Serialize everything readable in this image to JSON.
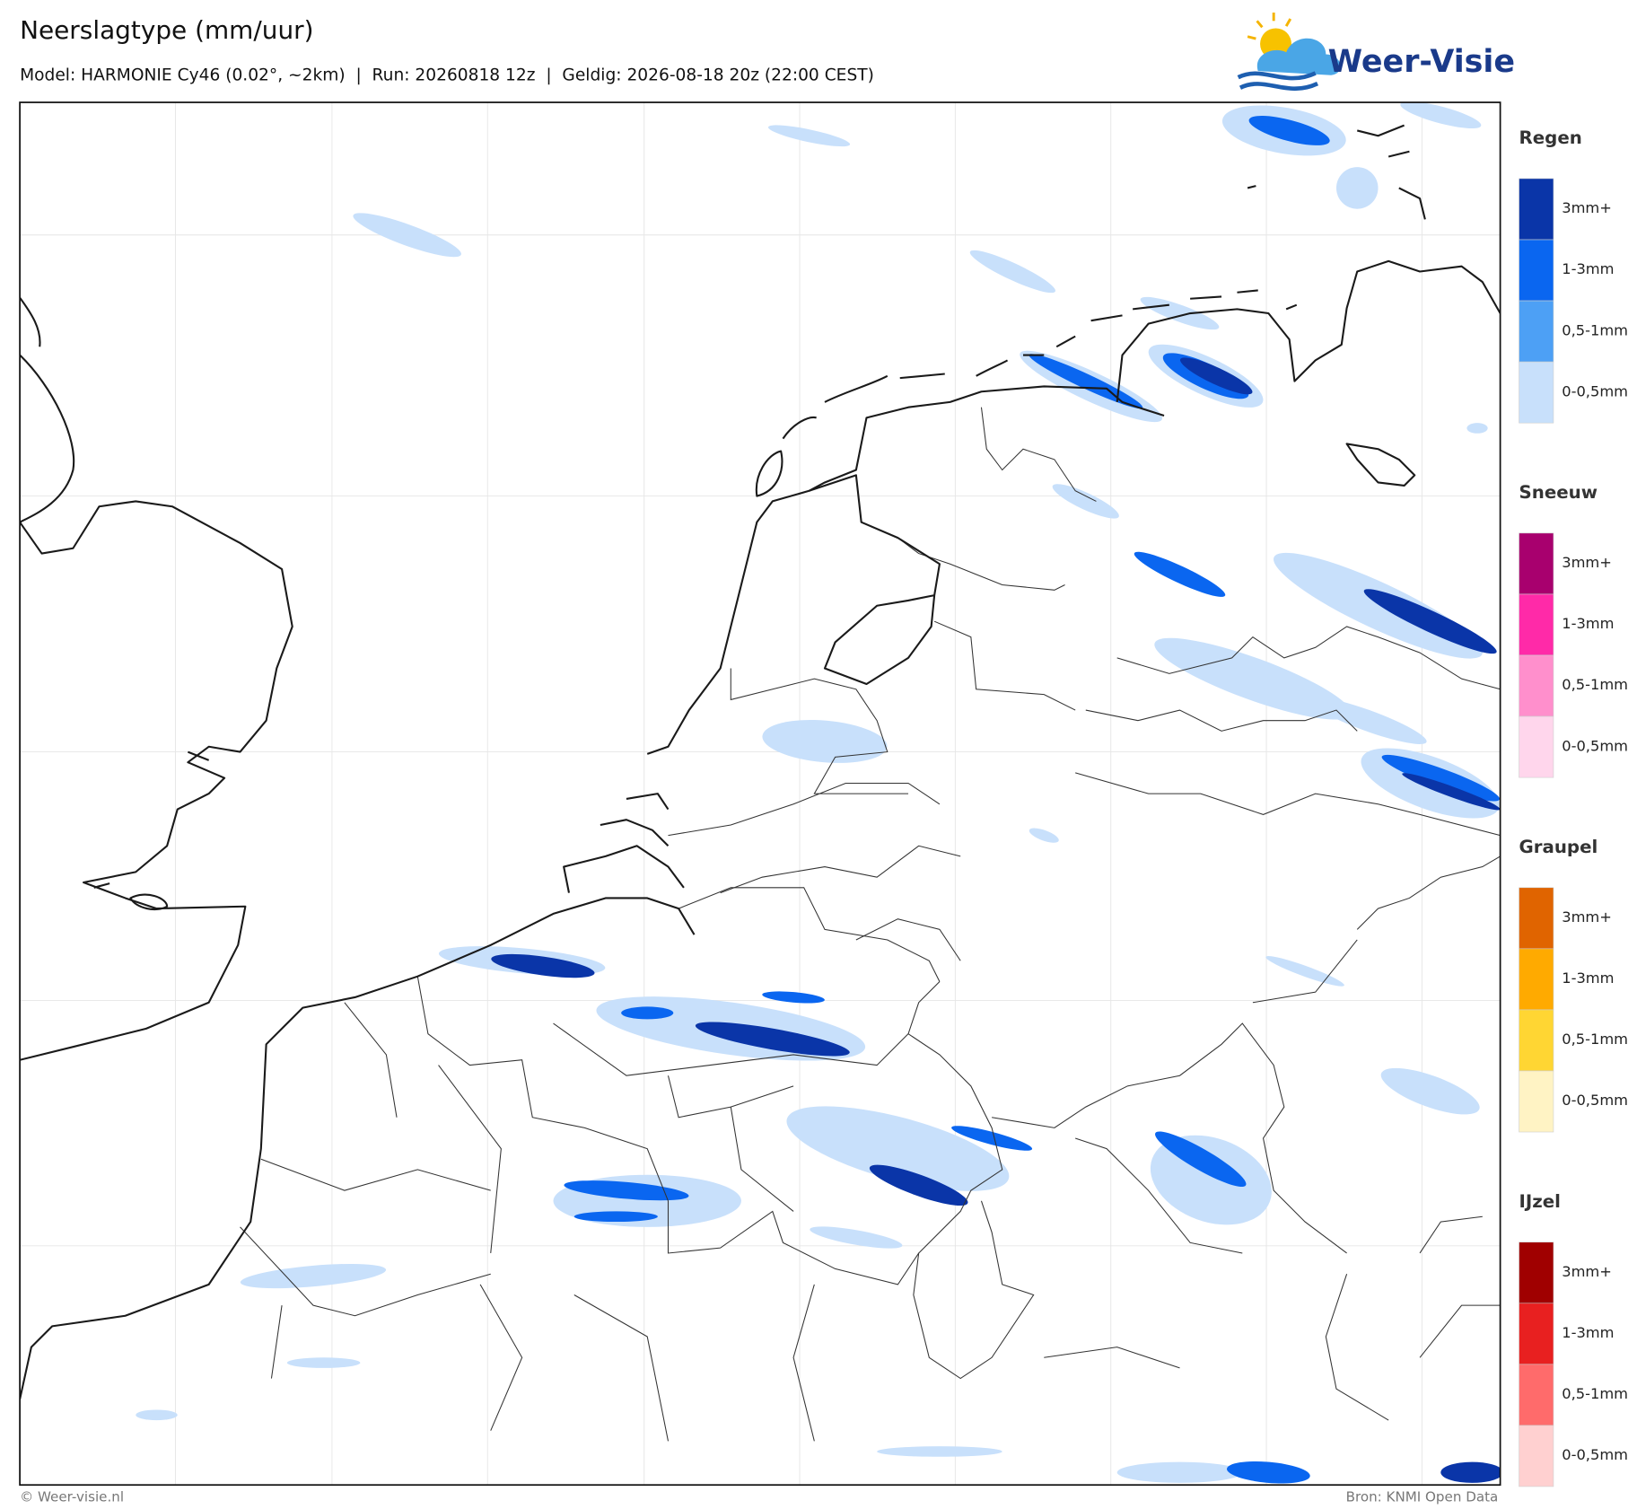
{
  "header": {
    "title": "Neerslagtype (mm/uur)",
    "subtitle": "Model: HARMONIE Cy46 (0.02°, ~2km)  |  Run: 20260818 12z  |  Geldig: 2026-08-18 20z (22:00 CEST)"
  },
  "logo": {
    "text": "Weer-Visie"
  },
  "legend": [
    {
      "name": "Regen",
      "items": [
        {
          "label": "3mm+",
          "color": "#0a35a8"
        },
        {
          "label": "1-3mm",
          "color": "#0a66f0"
        },
        {
          "label": "0,5-1mm",
          "color": "#4da0f5"
        },
        {
          "label": "0-0,5mm",
          "color": "#c8e0fb"
        }
      ]
    },
    {
      "name": "Sneeuw",
      "items": [
        {
          "label": "3mm+",
          "color": "#a8006e"
        },
        {
          "label": "1-3mm",
          "color": "#ff2aa8"
        },
        {
          "label": "0,5-1mm",
          "color": "#ff8fcc"
        },
        {
          "label": "0-0,5mm",
          "color": "#ffd6ec"
        }
      ]
    },
    {
      "name": "Graupel",
      "items": [
        {
          "label": "3mm+",
          "color": "#e06400"
        },
        {
          "label": "1-3mm",
          "color": "#ffaa00"
        },
        {
          "label": "0,5-1mm",
          "color": "#ffd633"
        },
        {
          "label": "0-0,5mm",
          "color": "#fff3c4"
        }
      ]
    },
    {
      "name": "IJzel",
      "items": [
        {
          "label": "3mm+",
          "color": "#a00000"
        },
        {
          "label": "1-3mm",
          "color": "#e82020"
        },
        {
          "label": "0,5-1mm",
          "color": "#ff6b6b"
        },
        {
          "label": "0-0,5mm",
          "color": "#ffd0d0"
        }
      ]
    }
  ],
  "footer": {
    "left": "© Weer-visie.nl",
    "right": "Bron: KNMI Open Data"
  }
}
